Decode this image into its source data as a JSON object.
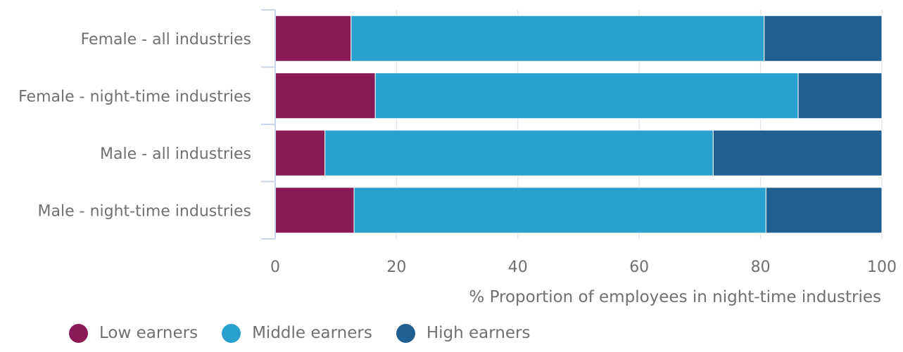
{
  "chart_data": {
    "type": "bar",
    "orientation": "horizontal",
    "stacked": true,
    "categories": [
      "Female - all industries",
      "Female - night-time industries",
      "Male - all industries",
      "Male - night-time industries"
    ],
    "series": [
      {
        "name": "Low earners",
        "color": "#8a1a55",
        "values": [
          12.5,
          16.5,
          8.2,
          13.0
        ]
      },
      {
        "name": "Middle earners",
        "color": "#29a0cd",
        "values": [
          68.1,
          69.7,
          64.0,
          67.9
        ]
      },
      {
        "name": "High earners",
        "color": "#205f92",
        "values": [
          19.4,
          13.8,
          27.8,
          19.1
        ]
      }
    ],
    "xlabel": "% Proportion of employees in night-time industries",
    "ylabel": "",
    "xlim": [
      0,
      100
    ],
    "xticks": [
      0,
      20,
      40,
      60,
      80,
      100
    ],
    "grid": "vertical",
    "legend_position": "bottom-left"
  }
}
